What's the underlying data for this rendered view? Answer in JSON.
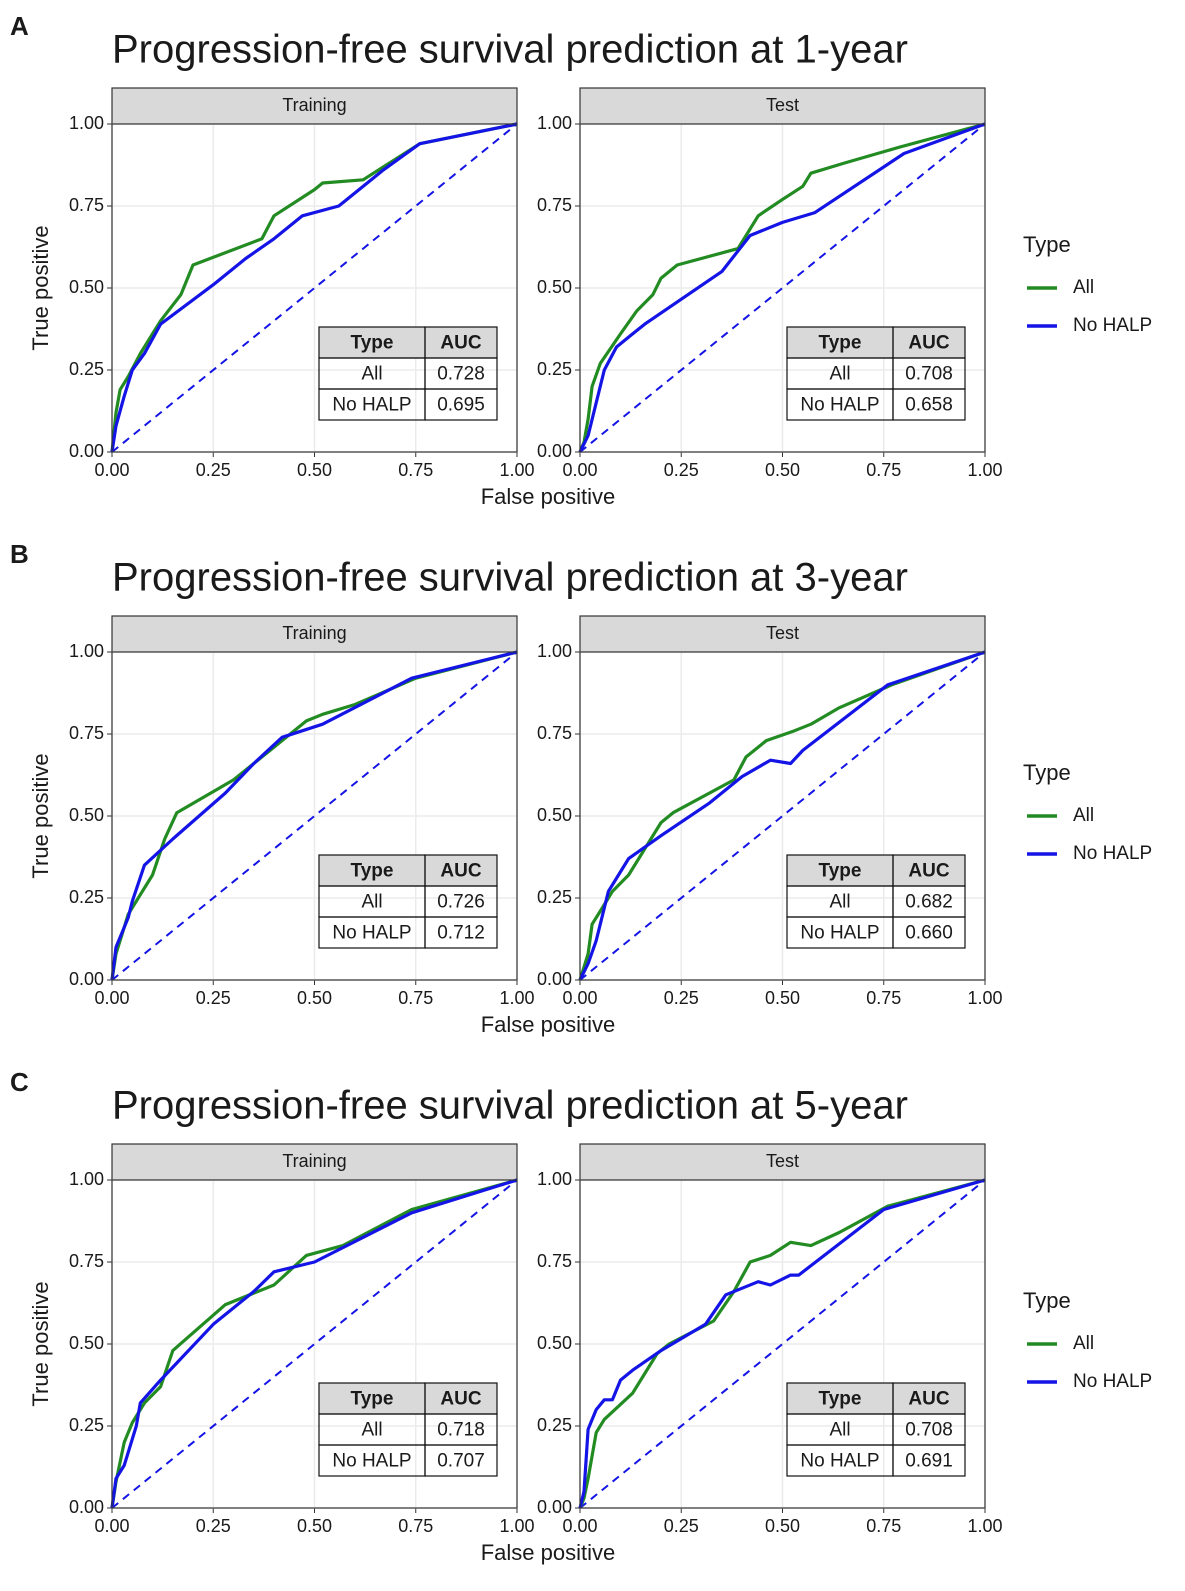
{
  "chart_data": [
    {
      "type": "line",
      "panel": "A",
      "title": "Progression-free survival prediction at 1-year",
      "x_label": "False positive",
      "y_label": "True positive",
      "legend_title": "Type",
      "table_columns": [
        "Type",
        "AUC"
      ],
      "xlim": [
        0,
        1
      ],
      "ylim": [
        0,
        1
      ],
      "xticks": [
        {
          "value": 0,
          "label": "0.00"
        },
        0.25,
        {
          "value": 0.5,
          "label": "0.50"
        },
        0.75,
        {
          "value": 1,
          "label": "1.00"
        }
      ],
      "yticks": [
        {
          "value": 0,
          "label": "0.00"
        },
        0.25,
        {
          "value": 0.5,
          "label": "0.50"
        },
        0.75,
        {
          "value": 1,
          "label": "1.00"
        }
      ],
      "facets": [
        {
          "name": "Training",
          "series": [
            {
              "name": "All",
              "color": "#228b22",
              "auc": 0.728,
              "x": [
                0,
                0.01,
                0.02,
                0.04,
                0.07,
                0.1,
                0.12,
                0.17,
                0.2,
                0.37,
                0.4,
                0.5,
                0.52,
                0.62,
                0.76,
                1
              ],
              "values": [
                0,
                0.12,
                0.19,
                0.23,
                0.3,
                0.36,
                0.4,
                0.48,
                0.57,
                0.65,
                0.72,
                0.8,
                0.82,
                0.83,
                0.94,
                1
              ]
            },
            {
              "name": "No HALP",
              "color": "#1414e6",
              "auc": 0.695,
              "x": [
                0,
                0.01,
                0.03,
                0.05,
                0.08,
                0.12,
                0.25,
                0.33,
                0.4,
                0.47,
                0.56,
                0.67,
                0.76,
                1
              ],
              "values": [
                0,
                0.08,
                0.17,
                0.25,
                0.3,
                0.39,
                0.51,
                0.59,
                0.65,
                0.72,
                0.75,
                0.86,
                0.94,
                1
              ]
            }
          ]
        },
        {
          "name": "Test",
          "series": [
            {
              "name": "All",
              "color": "#228b22",
              "auc": 0.708,
              "x": [
                0,
                0.01,
                0.02,
                0.03,
                0.05,
                0.1,
                0.14,
                0.18,
                0.2,
                0.24,
                0.39,
                0.44,
                0.5,
                0.55,
                0.57,
                0.65,
                0.79,
                1
              ],
              "values": [
                0,
                0.03,
                0.1,
                0.2,
                0.27,
                0.36,
                0.43,
                0.48,
                0.53,
                0.57,
                0.62,
                0.72,
                0.77,
                0.81,
                0.85,
                0.88,
                0.93,
                1
              ]
            },
            {
              "name": "No HALP",
              "color": "#1414e6",
              "auc": 0.658,
              "x": [
                0,
                0.02,
                0.04,
                0.06,
                0.09,
                0.13,
                0.16,
                0.35,
                0.42,
                0.5,
                0.58,
                0.8,
                1
              ],
              "values": [
                0,
                0.05,
                0.15,
                0.25,
                0.32,
                0.36,
                0.39,
                0.55,
                0.66,
                0.7,
                0.73,
                0.91,
                1
              ]
            }
          ]
        }
      ]
    },
    {
      "type": "line",
      "panel": "B",
      "title": "Progression-free survival prediction at 3-year",
      "x_label": "False positive",
      "y_label": "True positive",
      "legend_title": "Type",
      "table_columns": [
        "Type",
        "AUC"
      ],
      "xlim": [
        0,
        1
      ],
      "ylim": [
        0,
        1
      ],
      "xticks": [
        {
          "value": 0,
          "label": "0.00"
        },
        0.25,
        {
          "value": 0.5,
          "label": "0.50"
        },
        0.75,
        {
          "value": 1,
          "label": "1.00"
        }
      ],
      "yticks": [
        {
          "value": 0,
          "label": "0.00"
        },
        0.25,
        {
          "value": 0.5,
          "label": "0.50"
        },
        0.75,
        {
          "value": 1,
          "label": "1.00"
        }
      ],
      "facets": [
        {
          "name": "Training",
          "series": [
            {
              "name": "All",
              "color": "#228b22",
              "auc": 0.726,
              "x": [
                0,
                0.01,
                0.04,
                0.07,
                0.1,
                0.13,
                0.16,
                0.3,
                0.38,
                0.48,
                0.52,
                0.6,
                0.75,
                1
              ],
              "values": [
                0,
                0.08,
                0.2,
                0.26,
                0.32,
                0.43,
                0.51,
                0.61,
                0.69,
                0.79,
                0.81,
                0.84,
                0.92,
                1
              ]
            },
            {
              "name": "No HALP",
              "color": "#1414e6",
              "auc": 0.712,
              "x": [
                0,
                0.01,
                0.04,
                0.05,
                0.08,
                0.15,
                0.28,
                0.35,
                0.42,
                0.52,
                0.74,
                1
              ],
              "values": [
                0,
                0.1,
                0.19,
                0.24,
                0.35,
                0.43,
                0.57,
                0.66,
                0.74,
                0.78,
                0.92,
                1
              ]
            }
          ]
        },
        {
          "name": "Test",
          "series": [
            {
              "name": "All",
              "color": "#228b22",
              "auc": 0.682,
              "x": [
                0,
                0.02,
                0.03,
                0.05,
                0.08,
                0.12,
                0.17,
                0.2,
                0.23,
                0.38,
                0.41,
                0.46,
                0.53,
                0.57,
                0.64,
                0.77,
                1
              ],
              "values": [
                0,
                0.08,
                0.17,
                0.21,
                0.27,
                0.32,
                0.42,
                0.48,
                0.51,
                0.61,
                0.68,
                0.73,
                0.76,
                0.78,
                0.83,
                0.9,
                1
              ]
            },
            {
              "name": "No HALP",
              "color": "#1414e6",
              "auc": 0.66,
              "auc_label": "0.660",
              "x": [
                0,
                0.02,
                0.04,
                0.07,
                0.12,
                0.2,
                0.32,
                0.4,
                0.47,
                0.52,
                0.55,
                0.76,
                1
              ],
              "values": [
                0,
                0.05,
                0.12,
                0.27,
                0.37,
                0.44,
                0.54,
                0.62,
                0.67,
                0.66,
                0.7,
                0.9,
                1
              ]
            }
          ]
        }
      ]
    },
    {
      "type": "line",
      "panel": "C",
      "title": "Progression-free survival prediction at 5-year",
      "x_label": "False positive",
      "y_label": "True positive",
      "legend_title": "Type",
      "table_columns": [
        "Type",
        "AUC"
      ],
      "xlim": [
        0,
        1
      ],
      "ylim": [
        0,
        1
      ],
      "xticks": [
        {
          "value": 0,
          "label": "0.00"
        },
        0.25,
        {
          "value": 0.5,
          "label": "0.50"
        },
        0.75,
        {
          "value": 1,
          "label": "1.00"
        }
      ],
      "yticks": [
        {
          "value": 0,
          "label": "0.00"
        },
        0.25,
        {
          "value": 0.5,
          "label": "0.50"
        },
        0.75,
        {
          "value": 1,
          "label": "1.00"
        }
      ],
      "facets": [
        {
          "name": "Training",
          "series": [
            {
              "name": "All",
              "color": "#228b22",
              "auc": 0.718,
              "x": [
                0,
                0.01,
                0.03,
                0.05,
                0.08,
                0.12,
                0.15,
                0.28,
                0.4,
                0.48,
                0.57,
                0.74,
                1
              ],
              "values": [
                0,
                0.08,
                0.2,
                0.26,
                0.32,
                0.37,
                0.48,
                0.62,
                0.68,
                0.77,
                0.8,
                0.91,
                1
              ]
            },
            {
              "name": "No HALP",
              "color": "#1414e6",
              "auc": 0.707,
              "x": [
                0,
                0.01,
                0.03,
                0.06,
                0.07,
                0.12,
                0.25,
                0.35,
                0.4,
                0.5,
                0.74,
                1
              ],
              "values": [
                0,
                0.09,
                0.13,
                0.25,
                0.32,
                0.39,
                0.56,
                0.66,
                0.72,
                0.75,
                0.9,
                1
              ]
            }
          ]
        },
        {
          "name": "Test",
          "series": [
            {
              "name": "All",
              "color": "#228b22",
              "auc": 0.708,
              "x": [
                0,
                0.01,
                0.02,
                0.04,
                0.06,
                0.13,
                0.19,
                0.22,
                0.33,
                0.38,
                0.42,
                0.47,
                0.52,
                0.57,
                0.64,
                0.76,
                1
              ],
              "values": [
                0,
                0.03,
                0.09,
                0.23,
                0.27,
                0.35,
                0.47,
                0.5,
                0.57,
                0.66,
                0.75,
                0.77,
                0.81,
                0.8,
                0.84,
                0.92,
                1
              ]
            },
            {
              "name": "No HALP",
              "color": "#1414e6",
              "auc": 0.691,
              "x": [
                0,
                0.01,
                0.02,
                0.04,
                0.06,
                0.08,
                0.1,
                0.13,
                0.2,
                0.31,
                0.36,
                0.44,
                0.47,
                0.52,
                0.54,
                0.75,
                1
              ],
              "values": [
                0,
                0.05,
                0.24,
                0.3,
                0.33,
                0.33,
                0.39,
                0.42,
                0.48,
                0.56,
                0.65,
                0.69,
                0.68,
                0.71,
                0.71,
                0.91,
                1
              ]
            }
          ]
        }
      ]
    }
  ]
}
